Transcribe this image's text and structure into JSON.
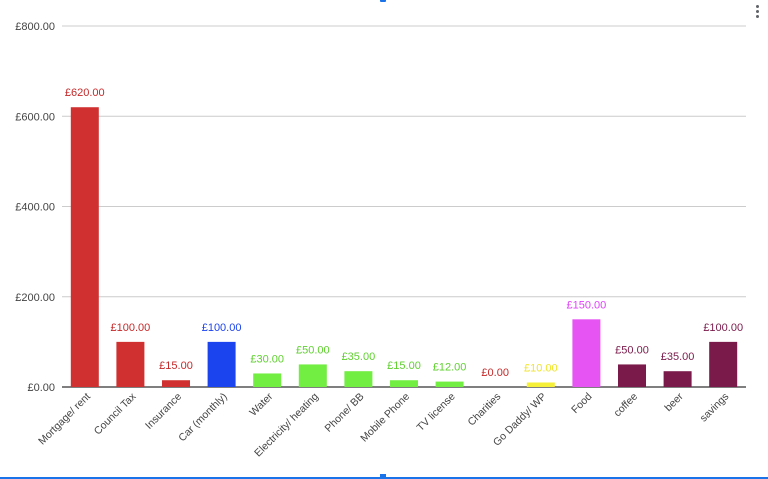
{
  "chart_data": {
    "type": "bar",
    "categories": [
      "Mortgage/ rent",
      "Council Tax",
      "Insurance",
      "Car (monthly)",
      "Water",
      "Electricity/ heating",
      "Phone/ BB",
      "Mobile Phone",
      "TV license",
      "Charities",
      "Go Daddy/ WP",
      "Food",
      "coffee",
      "beer",
      "savings"
    ],
    "values": [
      620,
      100,
      15,
      100,
      30,
      50,
      35,
      15,
      12,
      0,
      10,
      150,
      50,
      35,
      100
    ],
    "data_labels": [
      "£620.00",
      "£100.00",
      "£15.00",
      "£100.00",
      "£30.00",
      "£50.00",
      "£35.00",
      "£15.00",
      "£12.00",
      "£0.00",
      "£10.00",
      "£150.00",
      "£50.00",
      "£35.00",
      "£100.00"
    ],
    "colors": [
      "#d0302f",
      "#d0302f",
      "#d0302f",
      "#1c44ee",
      "#72ed42",
      "#72ed42",
      "#72ed42",
      "#72ed42",
      "#72ed42",
      "#d0302f",
      "#f5ef38",
      "#e655f3",
      "#7a1a4a",
      "#7a1a4a",
      "#7a1a4a"
    ],
    "label_colors": [
      "#c62828",
      "#c62828",
      "#c62828",
      "#1c44ee",
      "#5fd12f",
      "#5fd12f",
      "#5fd12f",
      "#5fd12f",
      "#5fd12f",
      "#c62828",
      "#f2e52a",
      "#e040fb",
      "#7a1a4a",
      "#7a1a4a",
      "#7a1a4a"
    ],
    "y_ticks": [
      0,
      200,
      400,
      600,
      800
    ],
    "y_tick_labels": [
      "£0.00",
      "£200.00",
      "£400.00",
      "£600.00",
      "£800.00"
    ],
    "ylim": [
      0,
      800
    ],
    "grid": true,
    "legend": "none",
    "title": "",
    "xlabel": "",
    "ylabel": ""
  }
}
